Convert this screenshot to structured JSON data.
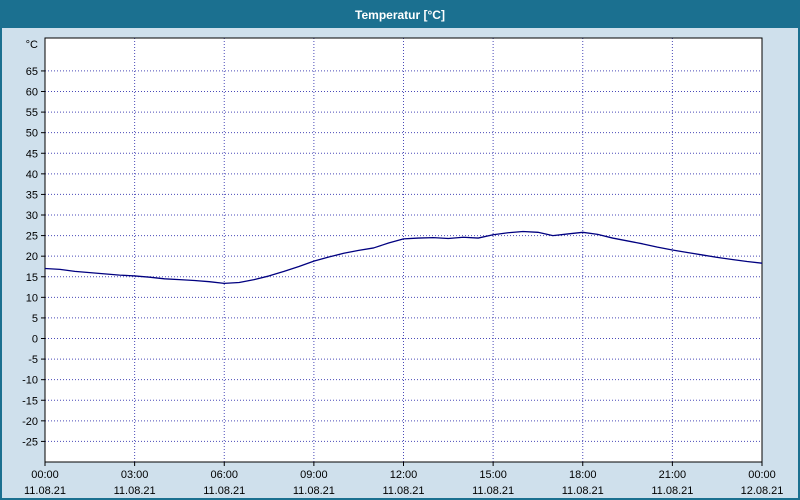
{
  "window": {
    "title": "Temperatur [°C]"
  },
  "colors": {
    "titlebar_bg": "#1b7090",
    "titlebar_text": "#ffffff",
    "outer_bg": "#cfe0ec",
    "plot_bg": "#ffffff",
    "grid": "#4a4ab8",
    "axis": "#000000",
    "line": "#000080"
  },
  "chart_data": {
    "type": "line",
    "title": "Temperatur [°C]",
    "xlabel": "",
    "ylabel": "°C",
    "ylim": [
      -30,
      73
    ],
    "xlim": [
      0,
      24
    ],
    "grid": true,
    "legend": "none",
    "yticks": [
      -25,
      -20,
      -15,
      -10,
      -5,
      0,
      5,
      10,
      15,
      20,
      25,
      30,
      35,
      40,
      45,
      50,
      55,
      60,
      65
    ],
    "xticks": [
      {
        "hour": 0,
        "time": "00:00",
        "date": "11.08.21"
      },
      {
        "hour": 3,
        "time": "03:00",
        "date": "11.08.21"
      },
      {
        "hour": 6,
        "time": "06:00",
        "date": "11.08.21"
      },
      {
        "hour": 9,
        "time": "09:00",
        "date": "11.08.21"
      },
      {
        "hour": 12,
        "time": "12:00",
        "date": "11.08.21"
      },
      {
        "hour": 15,
        "time": "15:00",
        "date": "11.08.21"
      },
      {
        "hour": 18,
        "time": "18:00",
        "date": "11.08.21"
      },
      {
        "hour": 21,
        "time": "21:00",
        "date": "11.08.21"
      },
      {
        "hour": 24,
        "time": "00:00",
        "date": "12.08.21"
      }
    ],
    "series": [
      {
        "name": "Temperatur",
        "color": "#000080",
        "x": [
          0,
          0.5,
          1,
          1.5,
          2,
          2.5,
          3,
          3.5,
          4,
          4.5,
          5,
          5.5,
          6,
          6.5,
          7,
          7.5,
          8,
          8.5,
          9,
          9.5,
          10,
          10.5,
          11,
          11.5,
          12,
          12.5,
          13,
          13.5,
          14,
          14.5,
          15,
          15.5,
          16,
          16.5,
          17,
          17.5,
          18,
          18.5,
          19,
          19.5,
          20,
          20.5,
          21,
          21.5,
          22,
          22.5,
          23,
          23.5,
          24
        ],
        "values": [
          17.0,
          16.8,
          16.3,
          16.0,
          15.7,
          15.4,
          15.2,
          14.9,
          14.5,
          14.3,
          14.1,
          13.8,
          13.4,
          13.6,
          14.3,
          15.2,
          16.3,
          17.5,
          18.8,
          19.8,
          20.7,
          21.4,
          22.0,
          23.2,
          24.2,
          24.4,
          24.5,
          24.3,
          24.6,
          24.4,
          25.2,
          25.7,
          26.0,
          25.8,
          25.0,
          25.4,
          25.8,
          25.3,
          24.4,
          23.7,
          23.0,
          22.2,
          21.5,
          20.9,
          20.3,
          19.7,
          19.2,
          18.7,
          18.3
        ]
      }
    ]
  }
}
